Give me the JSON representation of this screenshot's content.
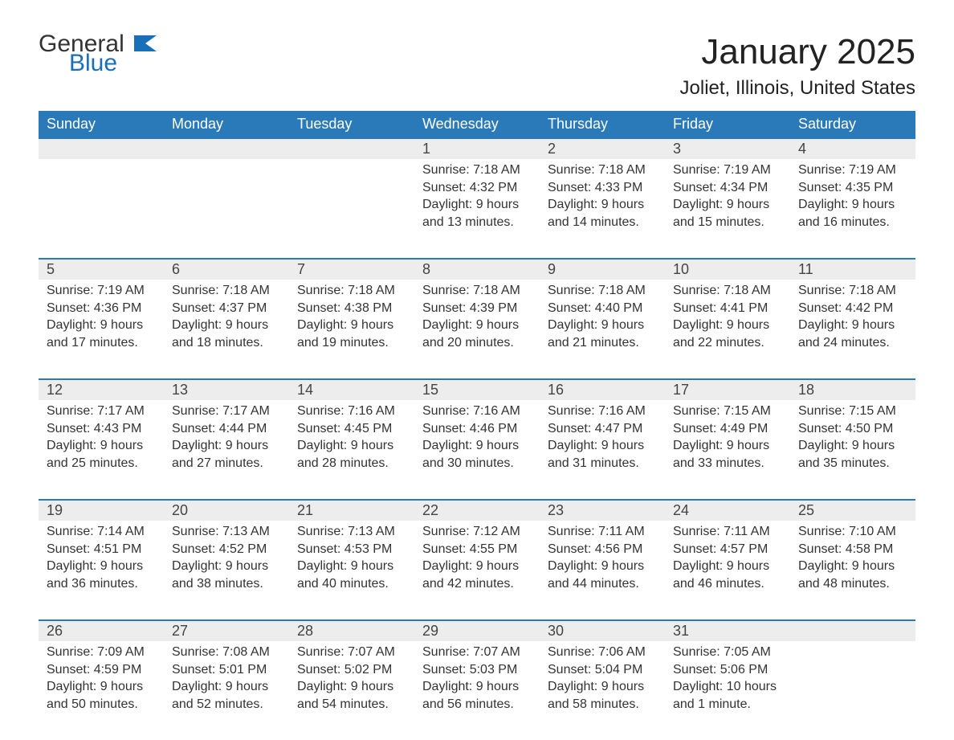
{
  "logo": {
    "main": "General",
    "sub": "Blue"
  },
  "title": "January 2025",
  "location": "Joliet, Illinois, United States",
  "colors": {
    "header_bg": "#2a7ab9",
    "header_text": "#ffffff",
    "row_border": "#2a7ab9",
    "daynum_bg": "#ededed",
    "body_bg": "#ffffff",
    "text": "#333333",
    "logo_blue": "#1a70b8"
  },
  "typography": {
    "title_fontsize": 44,
    "location_fontsize": 24,
    "header_fontsize": 18,
    "daynum_fontsize": 18,
    "body_fontsize": 16
  },
  "daysOfWeek": [
    "Sunday",
    "Monday",
    "Tuesday",
    "Wednesday",
    "Thursday",
    "Friday",
    "Saturday"
  ],
  "weeks": [
    [
      null,
      null,
      null,
      {
        "num": "1",
        "sunrise": "7:18 AM",
        "sunset": "4:32 PM",
        "daylight": "9 hours and 13 minutes."
      },
      {
        "num": "2",
        "sunrise": "7:18 AM",
        "sunset": "4:33 PM",
        "daylight": "9 hours and 14 minutes."
      },
      {
        "num": "3",
        "sunrise": "7:19 AM",
        "sunset": "4:34 PM",
        "daylight": "9 hours and 15 minutes."
      },
      {
        "num": "4",
        "sunrise": "7:19 AM",
        "sunset": "4:35 PM",
        "daylight": "9 hours and 16 minutes."
      }
    ],
    [
      {
        "num": "5",
        "sunrise": "7:19 AM",
        "sunset": "4:36 PM",
        "daylight": "9 hours and 17 minutes."
      },
      {
        "num": "6",
        "sunrise": "7:18 AM",
        "sunset": "4:37 PM",
        "daylight": "9 hours and 18 minutes."
      },
      {
        "num": "7",
        "sunrise": "7:18 AM",
        "sunset": "4:38 PM",
        "daylight": "9 hours and 19 minutes."
      },
      {
        "num": "8",
        "sunrise": "7:18 AM",
        "sunset": "4:39 PM",
        "daylight": "9 hours and 20 minutes."
      },
      {
        "num": "9",
        "sunrise": "7:18 AM",
        "sunset": "4:40 PM",
        "daylight": "9 hours and 21 minutes."
      },
      {
        "num": "10",
        "sunrise": "7:18 AM",
        "sunset": "4:41 PM",
        "daylight": "9 hours and 22 minutes."
      },
      {
        "num": "11",
        "sunrise": "7:18 AM",
        "sunset": "4:42 PM",
        "daylight": "9 hours and 24 minutes."
      }
    ],
    [
      {
        "num": "12",
        "sunrise": "7:17 AM",
        "sunset": "4:43 PM",
        "daylight": "9 hours and 25 minutes."
      },
      {
        "num": "13",
        "sunrise": "7:17 AM",
        "sunset": "4:44 PM",
        "daylight": "9 hours and 27 minutes."
      },
      {
        "num": "14",
        "sunrise": "7:16 AM",
        "sunset": "4:45 PM",
        "daylight": "9 hours and 28 minutes."
      },
      {
        "num": "15",
        "sunrise": "7:16 AM",
        "sunset": "4:46 PM",
        "daylight": "9 hours and 30 minutes."
      },
      {
        "num": "16",
        "sunrise": "7:16 AM",
        "sunset": "4:47 PM",
        "daylight": "9 hours and 31 minutes."
      },
      {
        "num": "17",
        "sunrise": "7:15 AM",
        "sunset": "4:49 PM",
        "daylight": "9 hours and 33 minutes."
      },
      {
        "num": "18",
        "sunrise": "7:15 AM",
        "sunset": "4:50 PM",
        "daylight": "9 hours and 35 minutes."
      }
    ],
    [
      {
        "num": "19",
        "sunrise": "7:14 AM",
        "sunset": "4:51 PM",
        "daylight": "9 hours and 36 minutes."
      },
      {
        "num": "20",
        "sunrise": "7:13 AM",
        "sunset": "4:52 PM",
        "daylight": "9 hours and 38 minutes."
      },
      {
        "num": "21",
        "sunrise": "7:13 AM",
        "sunset": "4:53 PM",
        "daylight": "9 hours and 40 minutes."
      },
      {
        "num": "22",
        "sunrise": "7:12 AM",
        "sunset": "4:55 PM",
        "daylight": "9 hours and 42 minutes."
      },
      {
        "num": "23",
        "sunrise": "7:11 AM",
        "sunset": "4:56 PM",
        "daylight": "9 hours and 44 minutes."
      },
      {
        "num": "24",
        "sunrise": "7:11 AM",
        "sunset": "4:57 PM",
        "daylight": "9 hours and 46 minutes."
      },
      {
        "num": "25",
        "sunrise": "7:10 AM",
        "sunset": "4:58 PM",
        "daylight": "9 hours and 48 minutes."
      }
    ],
    [
      {
        "num": "26",
        "sunrise": "7:09 AM",
        "sunset": "4:59 PM",
        "daylight": "9 hours and 50 minutes."
      },
      {
        "num": "27",
        "sunrise": "7:08 AM",
        "sunset": "5:01 PM",
        "daylight": "9 hours and 52 minutes."
      },
      {
        "num": "28",
        "sunrise": "7:07 AM",
        "sunset": "5:02 PM",
        "daylight": "9 hours and 54 minutes."
      },
      {
        "num": "29",
        "sunrise": "7:07 AM",
        "sunset": "5:03 PM",
        "daylight": "9 hours and 56 minutes."
      },
      {
        "num": "30",
        "sunrise": "7:06 AM",
        "sunset": "5:04 PM",
        "daylight": "9 hours and 58 minutes."
      },
      {
        "num": "31",
        "sunrise": "7:05 AM",
        "sunset": "5:06 PM",
        "daylight": "10 hours and 1 minute."
      },
      null
    ]
  ],
  "labels": {
    "sunrise": "Sunrise:",
    "sunset": "Sunset:",
    "daylight": "Daylight:"
  }
}
